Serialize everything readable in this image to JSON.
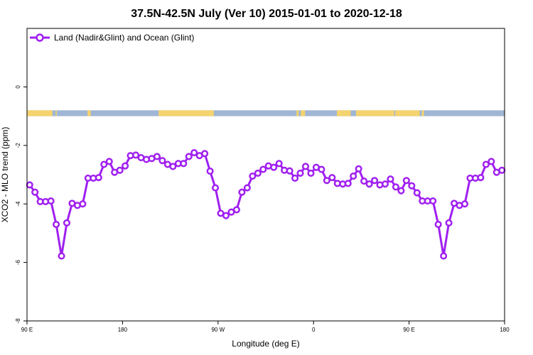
{
  "chart_data": {
    "type": "line",
    "title": "37.5N-42.5N July (Ver 10)   2015-01-01 to 2020-12-18",
    "xlabel": "Longitude (deg E)",
    "ylabel": "XCO2 - MLO trend (ppm)",
    "xlim": [
      90,
      540
    ],
    "ylim": [
      -8,
      2
    ],
    "x_ticks": [
      {
        "value": 90,
        "label": "90 E"
      },
      {
        "value": 180,
        "label": "180"
      },
      {
        "value": 270,
        "label": "90 W"
      },
      {
        "value": 360,
        "label": "0"
      },
      {
        "value": 450,
        "label": "90 E"
      },
      {
        "value": 540,
        "label": "180"
      }
    ],
    "y_ticks": [
      {
        "value": -8,
        "label": "-8"
      },
      {
        "value": -6,
        "label": "-6"
      },
      {
        "value": -4,
        "label": "-4"
      },
      {
        "value": -2,
        "label": "-2"
      },
      {
        "value": 0,
        "label": "0"
      }
    ],
    "legend": {
      "position": "top-left"
    },
    "map_strip": {
      "y_top": -0.8,
      "y_bottom": -1.0,
      "land_color": "#f5d36e",
      "ocean_color": "#9fb6d5"
    },
    "series": [
      {
        "name": "Land (Nadir&Glint) and Ocean (Glint)",
        "color": "#a020f0",
        "x": [
          92.5,
          97.5,
          102.5,
          107.5,
          112.5,
          117.5,
          122.5,
          127.5,
          132.5,
          137.5,
          142.5,
          147.5,
          152.5,
          157.5,
          162.5,
          167.5,
          172.5,
          177.5,
          182.5,
          187.5,
          192.5,
          197.5,
          202.5,
          207.5,
          212.5,
          217.5,
          222.5,
          227.5,
          232.5,
          237.5,
          242.5,
          247.5,
          252.5,
          257.5,
          262.5,
          267.5,
          272.5,
          277.5,
          282.5,
          287.5,
          292.5,
          297.5,
          302.5,
          307.5,
          312.5,
          317.5,
          322.5,
          327.5,
          332.5,
          337.5,
          342.5,
          347.5,
          352.5,
          357.5,
          362.5,
          367.5,
          372.5,
          377.5,
          382.5,
          387.5,
          392.5,
          397.5,
          402.5,
          407.5,
          412.5,
          417.5,
          422.5,
          427.5,
          432.5,
          437.5,
          442.5,
          447.5,
          452.5,
          457.5,
          462.5,
          467.5,
          472.5,
          477.5,
          482.5,
          487.5,
          492.5,
          497.5,
          502.5,
          507.5,
          512.5,
          517.5,
          522.5,
          527.5,
          532.5,
          537.5
        ],
        "values": [
          -3.35,
          -3.6,
          -3.92,
          -3.92,
          -3.9,
          -4.7,
          -5.78,
          -4.65,
          -3.98,
          -4.05,
          -4.0,
          -3.12,
          -3.12,
          -3.1,
          -2.65,
          -2.55,
          -2.92,
          -2.85,
          -2.7,
          -2.35,
          -2.33,
          -2.42,
          -2.48,
          -2.45,
          -2.38,
          -2.52,
          -2.65,
          -2.72,
          -2.62,
          -2.62,
          -2.38,
          -2.25,
          -2.35,
          -2.28,
          -2.88,
          -3.45,
          -4.32,
          -4.4,
          -4.28,
          -4.2,
          -3.6,
          -3.45,
          -3.05,
          -2.95,
          -2.82,
          -2.7,
          -2.75,
          -2.62,
          -2.85,
          -2.87,
          -3.12,
          -2.95,
          -2.72,
          -2.95,
          -2.75,
          -2.82,
          -3.2,
          -3.1,
          -3.3,
          -3.32,
          -3.3,
          -3.05,
          -2.8,
          -3.22,
          -3.32,
          -3.2,
          -3.35,
          -3.32,
          -3.15,
          -3.42,
          -3.55,
          -3.2,
          -3.38,
          -3.62,
          -3.9,
          -3.9,
          -3.9,
          -4.7,
          -5.78,
          -4.65,
          -3.98,
          -4.05,
          -4.0,
          -3.12,
          -3.12,
          -3.1,
          -2.65,
          -2.55,
          -2.92,
          -2.85
        ]
      }
    ]
  }
}
